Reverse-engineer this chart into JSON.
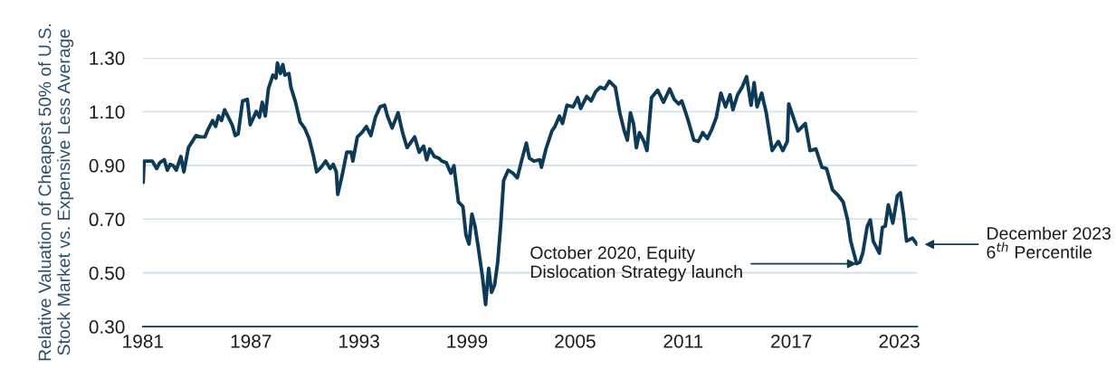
{
  "chart_data": {
    "type": "line",
    "ylabel": "Relative Valuation of Cheapest 50% of U.S.\nStock Market vs. Expensive Less Average",
    "xlim": [
      1981,
      2024
    ],
    "xticks": [
      1981,
      1987,
      1993,
      1999,
      2005,
      2011,
      2017,
      2023
    ],
    "ylim": [
      0.3,
      1.3
    ],
    "yticks": [
      {
        "value": 0.3,
        "label": "0.30"
      },
      {
        "value": 0.5,
        "label": "0.50"
      },
      {
        "value": 0.7,
        "label": "0.70"
      },
      {
        "value": 0.9,
        "label": "0.90"
      },
      {
        "value": 1.1,
        "label": "1.10"
      },
      {
        "value": 1.3,
        "label": "1.30"
      }
    ],
    "grid": "y",
    "legend": false,
    "marker": "none",
    "line_style": "solid",
    "series": [
      {
        "color": "#0d3a56",
        "x": [
          1981.02,
          1981.07,
          1981.27,
          1981.52,
          1981.77,
          1981.94,
          1982.19,
          1982.36,
          1982.52,
          1982.69,
          1982.86,
          1983.11,
          1983.28,
          1983.53,
          1983.95,
          1984.2,
          1984.45,
          1984.62,
          1984.87,
          1985.04,
          1985.2,
          1985.37,
          1985.54,
          1985.71,
          1985.96,
          1986.13,
          1986.29,
          1986.54,
          1986.8,
          1986.96,
          1987.3,
          1987.47,
          1987.63,
          1987.8,
          1987.97,
          1988.22,
          1988.39,
          1988.47,
          1988.64,
          1988.77,
          1988.89,
          1989.11,
          1989.22,
          1989.48,
          1989.73,
          1989.98,
          1990.23,
          1990.48,
          1990.65,
          1990.9,
          1991.15,
          1991.4,
          1991.57,
          1991.74,
          1991.82,
          1992.07,
          1992.32,
          1992.57,
          1992.66,
          1992.91,
          1993.16,
          1993.41,
          1993.66,
          1993.91,
          1994.17,
          1994.42,
          1994.58,
          1994.84,
          1995.17,
          1995.42,
          1995.67,
          1996.09,
          1996.34,
          1996.59,
          1996.76,
          1996.93,
          1997.18,
          1997.43,
          1997.6,
          1997.85,
          1998.1,
          1998.27,
          1998.52,
          1998.77,
          1998.94,
          1999.11,
          1999.27,
          1999.44,
          1999.61,
          1999.86,
          2000.03,
          2000.2,
          2000.36,
          2000.53,
          2000.7,
          2000.87,
          2001.03,
          2001.28,
          2001.54,
          2001.79,
          2002.04,
          2002.29,
          2002.46,
          2002.71,
          2003.04,
          2003.13,
          2003.38,
          2003.71,
          2003.88,
          2004.13,
          2004.3,
          2004.55,
          2004.89,
          2005.14,
          2005.31,
          2005.64,
          2005.89,
          2006.14,
          2006.39,
          2006.64,
          2006.9,
          2007.23,
          2007.48,
          2007.73,
          2007.9,
          2008.07,
          2008.24,
          2008.4,
          2008.57,
          2008.82,
          2008.99,
          2009.24,
          2009.58,
          2009.91,
          2010.25,
          2010.5,
          2010.75,
          2010.92,
          2011.25,
          2011.59,
          2011.84,
          2012.09,
          2012.34,
          2012.59,
          2012.84,
          2013.09,
          2013.35,
          2013.6,
          2013.76,
          2014.02,
          2014.27,
          2014.52,
          2014.77,
          2014.94,
          2015.1,
          2015.36,
          2015.61,
          2015.94,
          2016.28,
          2016.53,
          2016.78,
          2016.86,
          2017.11,
          2017.37,
          2017.78,
          2018.04,
          2018.37,
          2018.7,
          2018.96,
          2019.29,
          2019.63,
          2019.88,
          2020.13,
          2020.3,
          2020.63,
          2020.8,
          2020.97,
          2021.22,
          2021.39,
          2021.55,
          2021.89,
          2022.06,
          2022.22,
          2022.39,
          2022.64,
          2022.89,
          2023.06,
          2023.23,
          2023.4,
          2023.73,
          2023.98
        ],
        "values": [
          0.837,
          0.916,
          0.916,
          0.916,
          0.888,
          0.91,
          0.921,
          0.882,
          0.904,
          0.899,
          0.882,
          0.933,
          0.876,
          0.966,
          1.011,
          1.006,
          1.006,
          1.034,
          1.067,
          1.045,
          1.084,
          1.067,
          1.107,
          1.084,
          1.051,
          1.011,
          1.017,
          1.14,
          1.146,
          1.051,
          1.101,
          1.079,
          1.135,
          1.084,
          1.185,
          1.236,
          1.225,
          1.281,
          1.242,
          1.275,
          1.236,
          1.242,
          1.191,
          1.135,
          1.062,
          1.039,
          1.0,
          0.933,
          0.876,
          0.893,
          0.916,
          0.888,
          0.904,
          0.876,
          0.792,
          0.865,
          0.949,
          0.949,
          0.916,
          1.006,
          1.022,
          1.045,
          1.011,
          1.079,
          1.118,
          1.124,
          1.084,
          1.039,
          1.096,
          1.022,
          0.966,
          1.006,
          0.949,
          0.972,
          0.921,
          0.961,
          0.933,
          0.927,
          0.916,
          0.91,
          0.871,
          0.899,
          0.764,
          0.747,
          0.64,
          0.607,
          0.719,
          0.674,
          0.601,
          0.483,
          0.382,
          0.517,
          0.427,
          0.455,
          0.539,
          0.68,
          0.843,
          0.882,
          0.871,
          0.854,
          0.921,
          0.983,
          0.927,
          0.916,
          0.921,
          0.893,
          0.961,
          1.028,
          1.045,
          1.084,
          1.056,
          1.124,
          1.118,
          1.152,
          1.112,
          1.157,
          1.14,
          1.174,
          1.191,
          1.185,
          1.213,
          1.191,
          1.096,
          1.028,
          0.994,
          1.096,
          1.056,
          0.966,
          1.022,
          0.989,
          0.955,
          1.152,
          1.18,
          1.135,
          1.185,
          1.146,
          1.129,
          1.14,
          1.073,
          0.994,
          0.989,
          1.022,
          1.0,
          1.034,
          1.079,
          1.169,
          1.118,
          1.163,
          1.107,
          1.163,
          1.191,
          1.23,
          1.124,
          1.208,
          1.118,
          1.169,
          1.096,
          0.955,
          0.989,
          0.955,
          0.989,
          1.129,
          1.079,
          1.028,
          1.056,
          0.955,
          0.961,
          0.893,
          0.888,
          0.809,
          0.786,
          0.764,
          0.697,
          0.618,
          0.534,
          0.539,
          0.573,
          0.674,
          0.697,
          0.618,
          0.573,
          0.669,
          0.674,
          0.753,
          0.685,
          0.787,
          0.798,
          0.719,
          0.618,
          0.629,
          0.606
        ]
      }
    ],
    "annotations": [
      {
        "text": "October 2020, Equity\nDislocation Strategy launch",
        "x": 2020.63,
        "y": 0.534
      },
      "December 2023\n6$^{th}$ Percentile"
    ]
  }
}
